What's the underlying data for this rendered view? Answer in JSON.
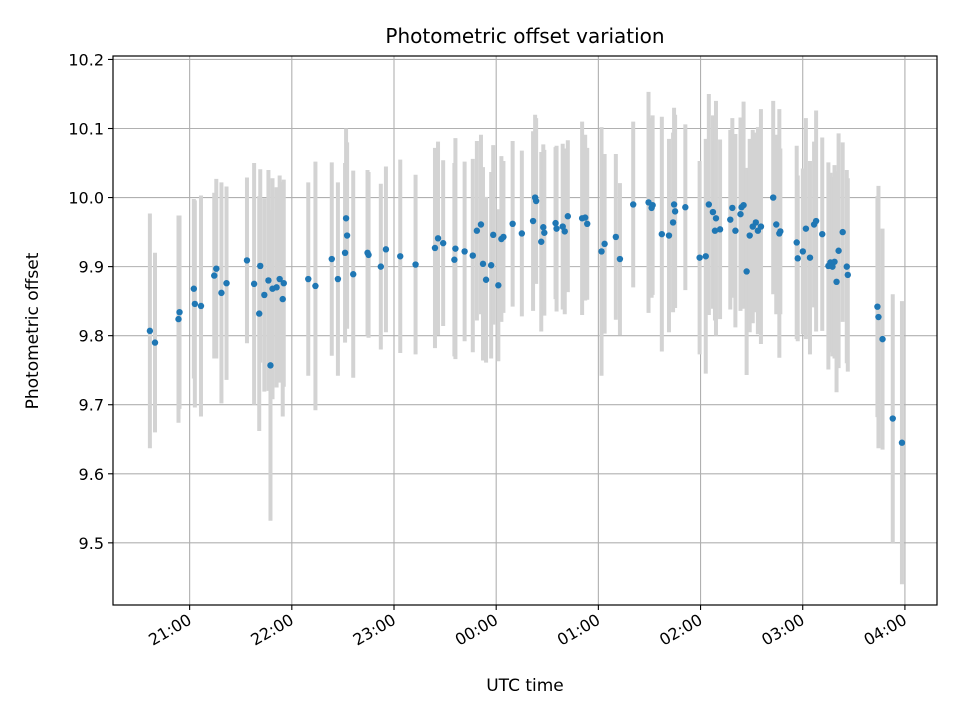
{
  "chart_data": {
    "type": "scatter",
    "title": "Photometric offset variation",
    "xlabel": "UTC time",
    "ylabel": "Photometric offset",
    "x_unit": "hours after 20:00 UTC (wraps past midnight)",
    "xlim": [
      0.239,
      8.303
    ],
    "ylim": [
      9.41,
      10.205
    ],
    "grid": true,
    "x_ticks": [
      {
        "value": 0.989,
        "label": "21:00"
      },
      {
        "value": 1.989,
        "label": "22:00"
      },
      {
        "value": 2.989,
        "label": "23:00"
      },
      {
        "value": 3.989,
        "label": "00:00"
      },
      {
        "value": 4.989,
        "label": "01:00"
      },
      {
        "value": 5.989,
        "label": "02:00"
      },
      {
        "value": 6.989,
        "label": "03:00"
      },
      {
        "value": 7.989,
        "label": "04:00"
      }
    ],
    "y_ticks": [
      9.5,
      9.6,
      9.7,
      9.8,
      9.9,
      10.0,
      10.1,
      10.2
    ],
    "y_tick_labels": [
      "9.5",
      "9.6",
      "9.7",
      "9.8",
      "9.9",
      "10.0",
      "10.1",
      "10.2"
    ],
    "colors": {
      "point": "#1f77b4",
      "errorbar": "#d3d3d3",
      "grid": "#b0b0b0"
    },
    "points": [
      [
        0.6,
        9.807,
        0.17
      ],
      [
        0.65,
        9.79,
        0.13
      ],
      [
        0.88,
        9.824,
        0.15
      ],
      [
        0.89,
        9.834,
        0.14
      ],
      [
        1.03,
        9.868,
        0.13
      ],
      [
        1.04,
        9.846,
        0.15
      ],
      [
        1.1,
        9.843,
        0.16
      ],
      [
        1.23,
        9.887,
        0.12
      ],
      [
        1.25,
        9.897,
        0.13
      ],
      [
        1.3,
        9.862,
        0.16
      ],
      [
        1.35,
        9.876,
        0.14
      ],
      [
        1.55,
        9.909,
        0.12
      ],
      [
        1.62,
        9.875,
        0.175
      ],
      [
        1.68,
        9.901,
        0.14
      ],
      [
        1.67,
        9.832,
        0.17
      ],
      [
        1.72,
        9.859,
        0.14
      ],
      [
        1.76,
        9.88,
        0.16
      ],
      [
        1.78,
        9.757,
        0.225
      ],
      [
        1.8,
        9.868,
        0.16
      ],
      [
        1.84,
        9.87,
        0.145
      ],
      [
        1.87,
        9.882,
        0.15
      ],
      [
        1.9,
        9.853,
        0.17
      ],
      [
        1.91,
        9.876,
        0.15
      ],
      [
        2.15,
        9.882,
        0.14
      ],
      [
        2.22,
        9.872,
        0.18
      ],
      [
        2.38,
        9.911,
        0.14
      ],
      [
        2.44,
        9.882,
        0.14
      ],
      [
        2.51,
        9.92,
        0.13
      ],
      [
        2.52,
        9.97,
        0.13
      ],
      [
        2.53,
        9.945,
        0.135
      ],
      [
        2.59,
        9.889,
        0.15
      ],
      [
        2.73,
        9.92,
        0.12
      ],
      [
        2.74,
        9.917,
        0.12
      ],
      [
        2.86,
        9.9,
        0.12
      ],
      [
        2.91,
        9.925,
        0.12
      ],
      [
        3.05,
        9.915,
        0.14
      ],
      [
        3.2,
        9.903,
        0.13
      ],
      [
        3.39,
        9.927,
        0.145
      ],
      [
        3.42,
        9.941,
        0.14
      ],
      [
        3.47,
        9.934,
        0.12
      ],
      [
        3.59,
        9.926,
        0.16
      ],
      [
        3.58,
        9.91,
        0.14
      ],
      [
        3.68,
        9.922,
        0.13
      ],
      [
        3.76,
        9.916,
        0.14
      ],
      [
        3.8,
        9.952,
        0.13
      ],
      [
        3.84,
        9.961,
        0.13
      ],
      [
        3.86,
        9.904,
        0.14
      ],
      [
        3.89,
        9.881,
        0.12
      ],
      [
        3.94,
        9.902,
        0.135
      ],
      [
        3.96,
        9.946,
        0.13
      ],
      [
        4.01,
        9.873,
        0.11
      ],
      [
        4.04,
        9.94,
        0.12
      ],
      [
        4.06,
        9.943,
        0.11
      ],
      [
        4.15,
        9.962,
        0.12
      ],
      [
        4.24,
        9.948,
        0.12
      ],
      [
        4.35,
        9.966,
        0.13
      ],
      [
        4.37,
        10.0,
        0.12
      ],
      [
        4.38,
        9.995,
        0.12
      ],
      [
        4.43,
        9.936,
        0.13
      ],
      [
        4.45,
        9.957,
        0.12
      ],
      [
        4.46,
        9.949,
        0.12
      ],
      [
        4.57,
        9.963,
        0.11
      ],
      [
        4.58,
        9.955,
        0.12
      ],
      [
        4.64,
        9.958,
        0.12
      ],
      [
        4.66,
        9.951,
        0.12
      ],
      [
        4.69,
        9.973,
        0.11
      ],
      [
        4.83,
        9.97,
        0.14
      ],
      [
        4.86,
        9.971,
        0.12
      ],
      [
        4.88,
        9.962,
        0.11
      ],
      [
        5.02,
        9.922,
        0.18
      ],
      [
        5.05,
        9.933,
        0.13
      ],
      [
        5.16,
        9.943,
        0.12
      ],
      [
        5.2,
        9.911,
        0.11
      ],
      [
        5.33,
        9.99,
        0.12
      ],
      [
        5.48,
        9.993,
        0.16
      ],
      [
        5.51,
        9.985,
        0.13
      ],
      [
        5.52,
        9.989,
        0.13
      ],
      [
        5.61,
        9.947,
        0.17
      ],
      [
        5.68,
        9.945,
        0.14
      ],
      [
        5.72,
        9.964,
        0.13
      ],
      [
        5.73,
        9.99,
        0.14
      ],
      [
        5.74,
        9.98,
        0.14
      ],
      [
        5.84,
        9.986,
        0.12
      ],
      [
        5.98,
        9.913,
        0.14
      ],
      [
        6.04,
        9.915,
        0.17
      ],
      [
        6.07,
        9.99,
        0.16
      ],
      [
        6.11,
        9.979,
        0.14
      ],
      [
        6.13,
        9.952,
        0.13
      ],
      [
        6.14,
        9.97,
        0.17
      ],
      [
        6.18,
        9.954,
        0.13
      ],
      [
        6.28,
        9.968,
        0.13
      ],
      [
        6.3,
        9.985,
        0.13
      ],
      [
        6.33,
        9.952,
        0.14
      ],
      [
        6.38,
        9.976,
        0.14
      ],
      [
        6.39,
        9.986,
        0.12
      ],
      [
        6.41,
        9.989,
        0.15
      ],
      [
        6.44,
        9.893,
        0.15
      ],
      [
        6.47,
        9.945,
        0.14
      ],
      [
        6.5,
        9.958,
        0.14
      ],
      [
        6.53,
        9.964,
        0.13
      ],
      [
        6.55,
        9.952,
        0.15
      ],
      [
        6.58,
        9.958,
        0.17
      ],
      [
        6.7,
        10.0,
        0.14
      ],
      [
        6.73,
        9.961,
        0.13
      ],
      [
        6.76,
        9.948,
        0.18
      ],
      [
        6.77,
        9.951,
        0.12
      ],
      [
        6.93,
        9.935,
        0.14
      ],
      [
        6.94,
        9.912,
        0.12
      ],
      [
        6.99,
        9.922,
        0.12
      ],
      [
        7.02,
        9.955,
        0.16
      ],
      [
        7.06,
        9.913,
        0.14
      ],
      [
        7.1,
        9.961,
        0.12
      ],
      [
        7.12,
        9.966,
        0.16
      ],
      [
        7.18,
        9.947,
        0.14
      ],
      [
        7.24,
        9.901,
        0.15
      ],
      [
        7.26,
        9.906,
        0.13
      ],
      [
        7.28,
        9.9,
        0.13
      ],
      [
        7.3,
        9.907,
        0.14
      ],
      [
        7.32,
        9.878,
        0.16
      ],
      [
        7.34,
        9.923,
        0.17
      ],
      [
        7.38,
        9.95,
        0.13
      ],
      [
        7.42,
        9.9,
        0.14
      ],
      [
        7.43,
        9.888,
        0.14
      ],
      [
        7.72,
        9.842,
        0.16
      ],
      [
        7.73,
        9.827,
        0.19
      ],
      [
        7.77,
        9.795,
        0.16
      ],
      [
        7.87,
        9.68,
        0.18
      ],
      [
        7.96,
        9.645,
        0.205
      ]
    ]
  }
}
